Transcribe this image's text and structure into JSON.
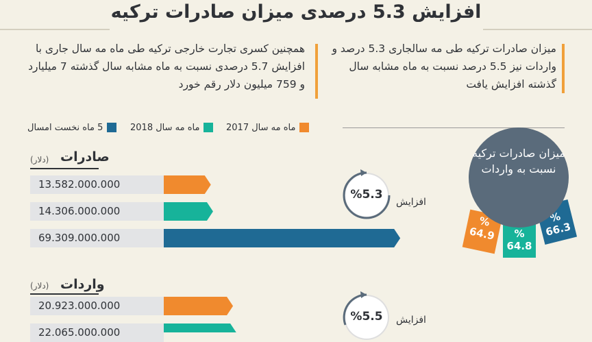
{
  "title": "افزایش 5.3 درصدی میزان صادرات ترکیه",
  "intro": {
    "right_text": "میزان صادرات ترکیه طی مه سالجاری 5.3 درصد و واردات نیز 5.5 درصد نسبت به ماه مشابه سال گذشته افزایش یافت",
    "left_text": "همچنین کسری تجارت خارجی ترکیه طی ماه مه سال جاری با افزایش 5.7 درصدی نسبت به ماه مشابه سال گذشته 7 میلیارد و 759 میلیون دلار رقم خورد"
  },
  "legend": [
    {
      "label": "ماه مه سال 2017",
      "color": "#f08a2e"
    },
    {
      "label": "ماه مه سال 2018",
      "color": "#17b39a"
    },
    {
      "label": "5 ماه نخست امسال",
      "color": "#1f6a94"
    }
  ],
  "chart_data": {
    "type": "bar",
    "series_colors": [
      "#f08a2e",
      "#17b39a",
      "#1f6a94"
    ],
    "groups": [
      {
        "title": "صادرات",
        "unit": "(دلار)",
        "values": [
          13582000000,
          14306000000,
          69309000000
        ],
        "value_labels": [
          "13.582.000.000",
          "14.306.000.000",
          "69.309.000.000"
        ],
        "increase_pct": "%5.3",
        "increase_label": "افزایش"
      },
      {
        "title": "واردات",
        "unit": "(دلار)",
        "values": [
          20923000000,
          22065000000
        ],
        "value_labels": [
          "20.923.000.000",
          "22.065.000.000"
        ],
        "increase_pct": "%5.5",
        "increase_label": "افزایش"
      }
    ]
  },
  "ratio": {
    "title": "میزان صادرات ترکیه نسبت به واردات",
    "values": [
      {
        "label": "64.9",
        "color": "#f08a2e"
      },
      {
        "label": "64.8",
        "color": "#17b39a"
      },
      {
        "label": "66.3",
        "color": "#1f6a94"
      }
    ],
    "percent_sign": "%"
  }
}
